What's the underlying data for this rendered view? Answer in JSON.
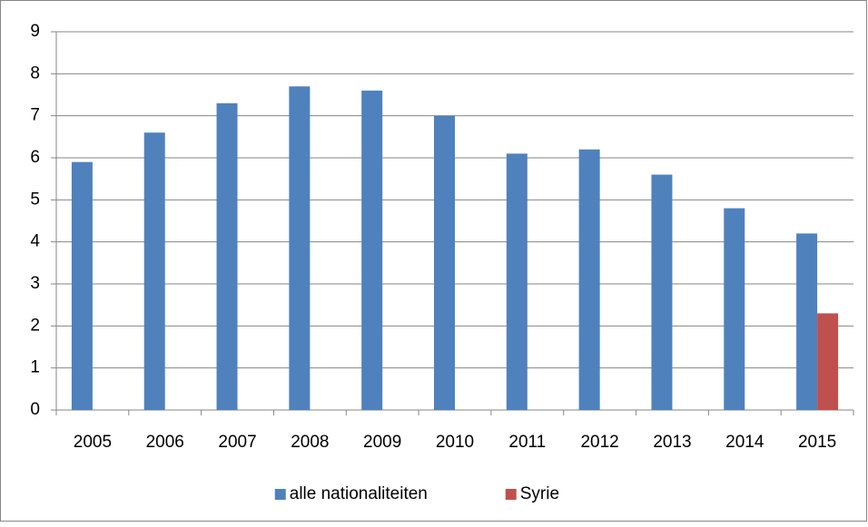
{
  "chart_data": {
    "type": "bar",
    "categories": [
      "2005",
      "2006",
      "2007",
      "2008",
      "2009",
      "2010",
      "2011",
      "2012",
      "2013",
      "2014",
      "2015"
    ],
    "series": [
      {
        "name": "alle nationaliteiten",
        "color": "#4f81bd",
        "values": [
          5.9,
          6.6,
          7.3,
          7.7,
          7.6,
          7.0,
          6.1,
          6.2,
          5.6,
          4.8,
          4.2
        ]
      },
      {
        "name": "Syrie",
        "color": "#c0504d",
        "values": [
          null,
          null,
          null,
          null,
          null,
          null,
          null,
          null,
          null,
          null,
          2.3
        ]
      }
    ],
    "ylim": [
      0,
      9
    ],
    "yticks": [
      0,
      1,
      2,
      3,
      4,
      5,
      6,
      7,
      8,
      9
    ],
    "grid": true,
    "legend": "bottom"
  }
}
